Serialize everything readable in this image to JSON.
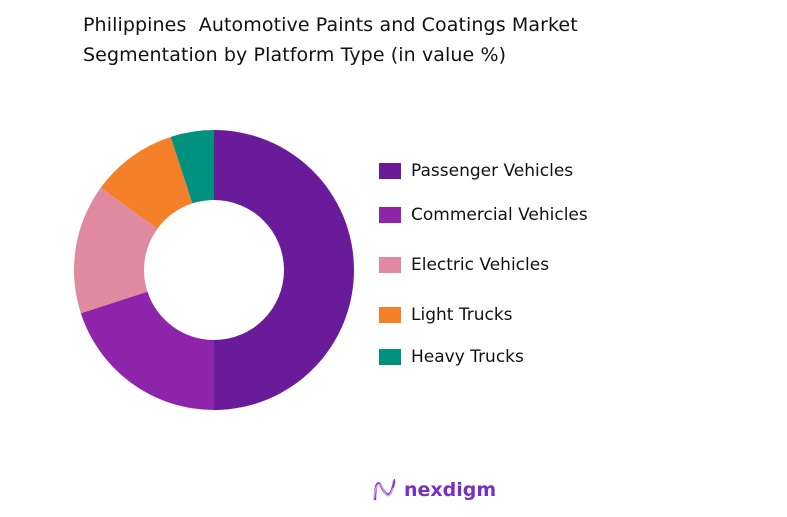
{
  "chart_data": {
    "type": "pie",
    "variant": "donut",
    "title_line1": "Philippines  Automotive Paints and Coatings Market",
    "title_line2": "Segmentation by Platform Type (in value %)",
    "categories": [
      "Passenger Vehicles",
      "Commercial Vehicles",
      "Electric Vehicles",
      "Light Trucks",
      "Heavy Trucks"
    ],
    "values": [
      50,
      20,
      15,
      10,
      5
    ],
    "colors": [
      "#6a1b9a",
      "#8e24aa",
      "#e08aa2",
      "#f5802a",
      "#00917f"
    ],
    "legend_position": "right"
  },
  "brand": {
    "name": "nexdigm",
    "color": "#7a2fc4"
  }
}
